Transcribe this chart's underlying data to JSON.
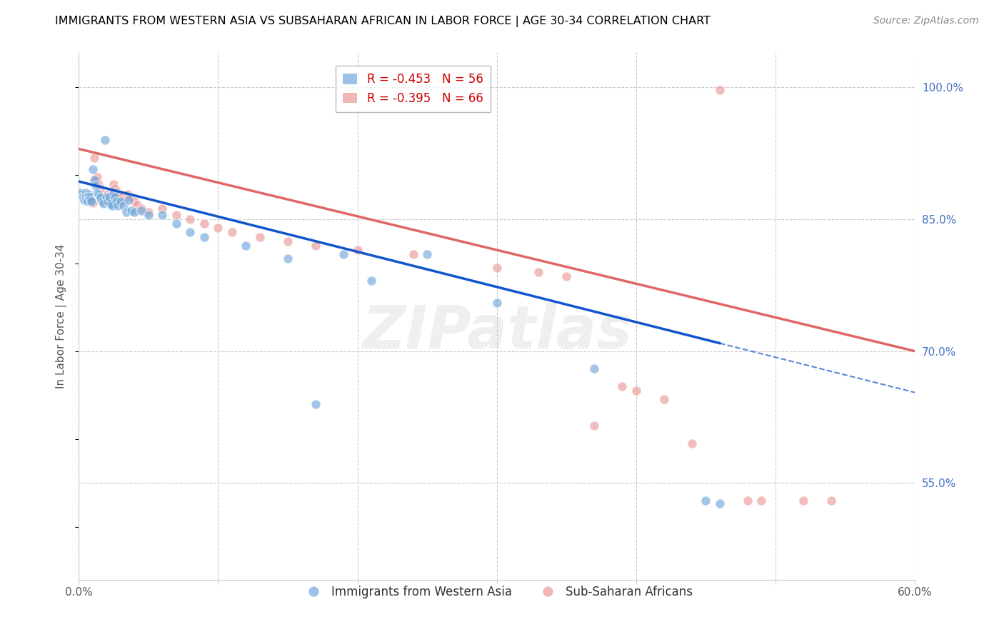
{
  "title": "IMMIGRANTS FROM WESTERN ASIA VS SUBSAHARAN AFRICAN IN LABOR FORCE | AGE 30-34 CORRELATION CHART",
  "source": "Source: ZipAtlas.com",
  "ylabel": "In Labor Force | Age 30-34",
  "xlim": [
    0.0,
    0.6
  ],
  "ylim": [
    0.44,
    1.04
  ],
  "right_yticks": [
    1.0,
    0.85,
    0.7,
    0.55
  ],
  "right_yticklabels": [
    "100.0%",
    "85.0%",
    "70.0%",
    "55.0%"
  ],
  "xticks": [
    0.0,
    0.1,
    0.2,
    0.3,
    0.4,
    0.5,
    0.6
  ],
  "xticklabels": [
    "0.0%",
    "",
    "",
    "",
    "",
    "",
    "60.0%"
  ],
  "blue_R": -0.453,
  "blue_N": 56,
  "pink_R": -0.395,
  "pink_N": 66,
  "blue_color": "#6fa8dc",
  "pink_color": "#ea9999",
  "blue_line_color": "#1155cc",
  "pink_line_color": "#e06666",
  "blue_scatter": [
    [
      0.001,
      0.88
    ],
    [
      0.002,
      0.878
    ],
    [
      0.003,
      0.876
    ],
    [
      0.003,
      0.875
    ],
    [
      0.004,
      0.874
    ],
    [
      0.004,
      0.872
    ],
    [
      0.005,
      0.88
    ],
    [
      0.005,
      0.875
    ],
    [
      0.006,
      0.873
    ],
    [
      0.006,
      0.871
    ],
    [
      0.007,
      0.878
    ],
    [
      0.007,
      0.876
    ],
    [
      0.008,
      0.875
    ],
    [
      0.008,
      0.872
    ],
    [
      0.009,
      0.87
    ],
    [
      0.01,
      0.907
    ],
    [
      0.011,
      0.895
    ],
    [
      0.012,
      0.888
    ],
    [
      0.013,
      0.88
    ],
    [
      0.014,
      0.878
    ],
    [
      0.015,
      0.876
    ],
    [
      0.016,
      0.874
    ],
    [
      0.017,
      0.87
    ],
    [
      0.018,
      0.868
    ],
    [
      0.019,
      0.94
    ],
    [
      0.02,
      0.875
    ],
    [
      0.021,
      0.87
    ],
    [
      0.022,
      0.875
    ],
    [
      0.023,
      0.868
    ],
    [
      0.024,
      0.865
    ],
    [
      0.025,
      0.88
    ],
    [
      0.026,
      0.875
    ],
    [
      0.027,
      0.87
    ],
    [
      0.028,
      0.865
    ],
    [
      0.03,
      0.87
    ],
    [
      0.032,
      0.865
    ],
    [
      0.034,
      0.858
    ],
    [
      0.036,
      0.872
    ],
    [
      0.038,
      0.86
    ],
    [
      0.04,
      0.858
    ],
    [
      0.045,
      0.86
    ],
    [
      0.05,
      0.855
    ],
    [
      0.06,
      0.855
    ],
    [
      0.07,
      0.845
    ],
    [
      0.08,
      0.835
    ],
    [
      0.09,
      0.83
    ],
    [
      0.12,
      0.82
    ],
    [
      0.15,
      0.805
    ],
    [
      0.17,
      0.64
    ],
    [
      0.19,
      0.81
    ],
    [
      0.21,
      0.78
    ],
    [
      0.25,
      0.81
    ],
    [
      0.3,
      0.755
    ],
    [
      0.37,
      0.68
    ],
    [
      0.45,
      0.53
    ],
    [
      0.46,
      0.527
    ]
  ],
  "pink_scatter": [
    [
      0.001,
      0.88
    ],
    [
      0.002,
      0.878
    ],
    [
      0.003,
      0.877
    ],
    [
      0.003,
      0.875
    ],
    [
      0.004,
      0.876
    ],
    [
      0.004,
      0.874
    ],
    [
      0.005,
      0.872
    ],
    [
      0.005,
      0.878
    ],
    [
      0.006,
      0.876
    ],
    [
      0.006,
      0.874
    ],
    [
      0.007,
      0.872
    ],
    [
      0.007,
      0.87
    ],
    [
      0.008,
      0.875
    ],
    [
      0.008,
      0.873
    ],
    [
      0.009,
      0.871
    ],
    [
      0.01,
      0.869
    ],
    [
      0.011,
      0.92
    ],
    [
      0.012,
      0.895
    ],
    [
      0.013,
      0.898
    ],
    [
      0.014,
      0.89
    ],
    [
      0.015,
      0.885
    ],
    [
      0.016,
      0.882
    ],
    [
      0.017,
      0.878
    ],
    [
      0.018,
      0.876
    ],
    [
      0.019,
      0.873
    ],
    [
      0.02,
      0.87
    ],
    [
      0.021,
      0.878
    ],
    [
      0.022,
      0.875
    ],
    [
      0.023,
      0.872
    ],
    [
      0.024,
      0.868
    ],
    [
      0.025,
      0.89
    ],
    [
      0.026,
      0.885
    ],
    [
      0.027,
      0.882
    ],
    [
      0.028,
      0.878
    ],
    [
      0.03,
      0.875
    ],
    [
      0.032,
      0.872
    ],
    [
      0.035,
      0.878
    ],
    [
      0.037,
      0.875
    ],
    [
      0.04,
      0.87
    ],
    [
      0.042,
      0.866
    ],
    [
      0.045,
      0.862
    ],
    [
      0.05,
      0.858
    ],
    [
      0.06,
      0.862
    ],
    [
      0.07,
      0.855
    ],
    [
      0.08,
      0.85
    ],
    [
      0.09,
      0.845
    ],
    [
      0.1,
      0.84
    ],
    [
      0.11,
      0.835
    ],
    [
      0.13,
      0.83
    ],
    [
      0.15,
      0.825
    ],
    [
      0.17,
      0.82
    ],
    [
      0.2,
      0.815
    ],
    [
      0.24,
      0.81
    ],
    [
      0.3,
      0.795
    ],
    [
      0.33,
      0.79
    ],
    [
      0.35,
      0.785
    ],
    [
      0.37,
      0.615
    ],
    [
      0.39,
      0.66
    ],
    [
      0.4,
      0.655
    ],
    [
      0.42,
      0.645
    ],
    [
      0.44,
      0.595
    ],
    [
      0.46,
      0.997
    ],
    [
      0.48,
      0.53
    ],
    [
      0.49,
      0.53
    ],
    [
      0.52,
      0.53
    ],
    [
      0.54,
      0.53
    ]
  ],
  "blue_trendline_solid": [
    [
      0.0,
      0.893
    ],
    [
      0.46,
      0.709
    ]
  ],
  "blue_trendline_dashed": [
    [
      0.46,
      0.709
    ],
    [
      0.6,
      0.653
    ]
  ],
  "pink_trendline": [
    [
      0.0,
      0.93
    ],
    [
      0.6,
      0.7
    ]
  ],
  "watermark": "ZIPatlas",
  "background_color": "#ffffff",
  "grid_color": "#cccccc",
  "title_color": "#000000",
  "right_axis_color": "#4472c4",
  "left_label_color": "#666666"
}
